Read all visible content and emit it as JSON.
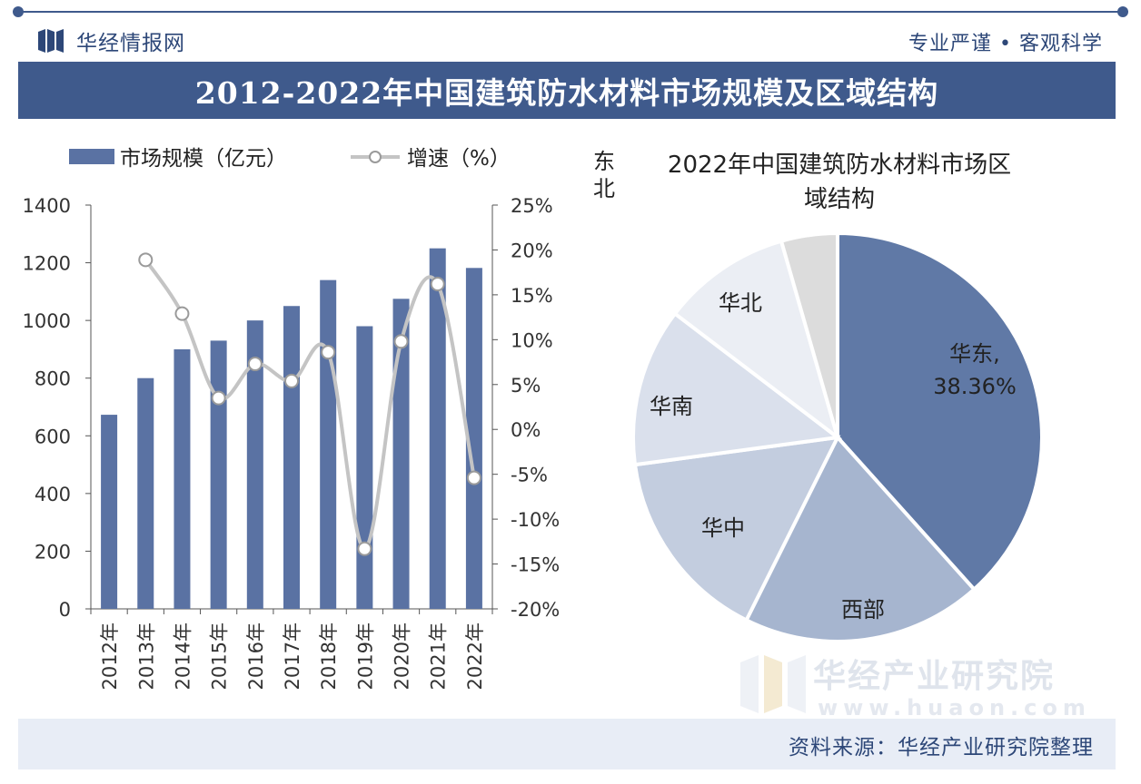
{
  "brand": {
    "logo_text": "华经情报网",
    "slogan": "专业严谨 • 客观科学"
  },
  "title": "2012-2022年中国建筑防水材料市场规模及区域结构",
  "footer": {
    "source": "资料来源：华经产业研究院整理"
  },
  "watermark": {
    "name": "华经产业研究院",
    "url": "www.huaon.com"
  },
  "colors": {
    "brand": "#3f5a8c",
    "bar": "#5a72a3",
    "line": "#c4c4c4"
  },
  "chart_data": [
    {
      "type": "bar",
      "categories": [
        "2012年",
        "2013年",
        "2014年",
        "2015年",
        "2016年",
        "2017年",
        "2018年",
        "2019年",
        "2020年",
        "2021年",
        "2022年"
      ],
      "series": [
        {
          "name": "市场规模（亿元）",
          "type": "bar",
          "axis": "left",
          "values": [
            673,
            800,
            900,
            930,
            1000,
            1050,
            1140,
            980,
            1075,
            1250,
            1182
          ]
        },
        {
          "name": "增速（%）",
          "type": "line",
          "axis": "right",
          "values": [
            null,
            18.9,
            12.9,
            3.5,
            7.3,
            5.4,
            8.6,
            -13.3,
            9.8,
            16.2,
            -5.4
          ]
        }
      ],
      "ylim": [
        0,
        1400
      ],
      "yticks": [
        "0",
        "200",
        "400",
        "600",
        "800",
        "1000",
        "1200",
        "1400"
      ],
      "y2lim": [
        -20,
        25
      ],
      "y2ticks": [
        "-20%",
        "-15%",
        "-10%",
        "-5%",
        "0%",
        "5%",
        "10%",
        "15%",
        "20%",
        "25%"
      ],
      "legend": "top-left"
    },
    {
      "type": "pie",
      "title": "2022年中国建筑防水材料市场区域结构",
      "labels": [
        "华东",
        "西部",
        "华中",
        "华南",
        "华北",
        "东北"
      ],
      "values": [
        38.36,
        19.0,
        15.5,
        12.5,
        10.2,
        4.44
      ],
      "data_labels": [
        "华东, 38.36%",
        "西部",
        "华中",
        "华南",
        "华北",
        "东北"
      ],
      "colors": [
        "#6079a6",
        "#a6b5cf",
        "#c3cddf",
        "#dae0ec",
        "#ebeef4",
        "#dcdcdc"
      ]
    }
  ]
}
